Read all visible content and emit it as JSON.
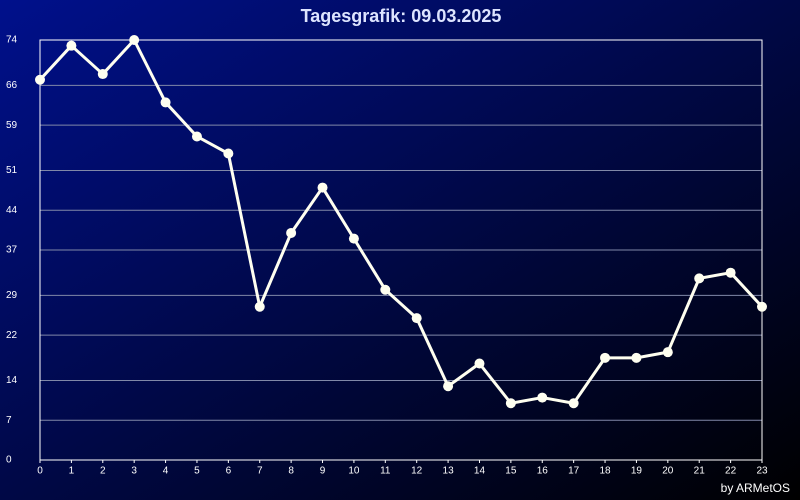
{
  "chart_data": {
    "type": "line",
    "title": "Tagesgrafik: 09.03.2025",
    "footer": "by ARMetOS",
    "x": [
      0,
      1,
      2,
      3,
      4,
      5,
      6,
      7,
      8,
      9,
      10,
      11,
      12,
      13,
      14,
      15,
      16,
      17,
      18,
      19,
      20,
      21,
      22,
      23
    ],
    "series": [
      {
        "color": "#fffff0",
        "values": [
          67,
          73,
          68,
          74,
          63,
          57,
          54,
          27,
          40,
          48,
          39,
          30,
          25,
          13,
          17,
          10,
          11,
          10,
          18,
          18,
          19,
          32,
          33,
          27
        ]
      }
    ],
    "xlim": [
      0,
      23
    ],
    "xticks": [
      0,
      1,
      2,
      3,
      4,
      5,
      6,
      7,
      8,
      9,
      10,
      11,
      12,
      13,
      14,
      15,
      16,
      17,
      18,
      19,
      20,
      21,
      22,
      23
    ],
    "ylim": [
      0,
      74
    ],
    "yticks": [
      0,
      7,
      14,
      22,
      29,
      37,
      44,
      51,
      59,
      66,
      74
    ],
    "grid": true
  }
}
